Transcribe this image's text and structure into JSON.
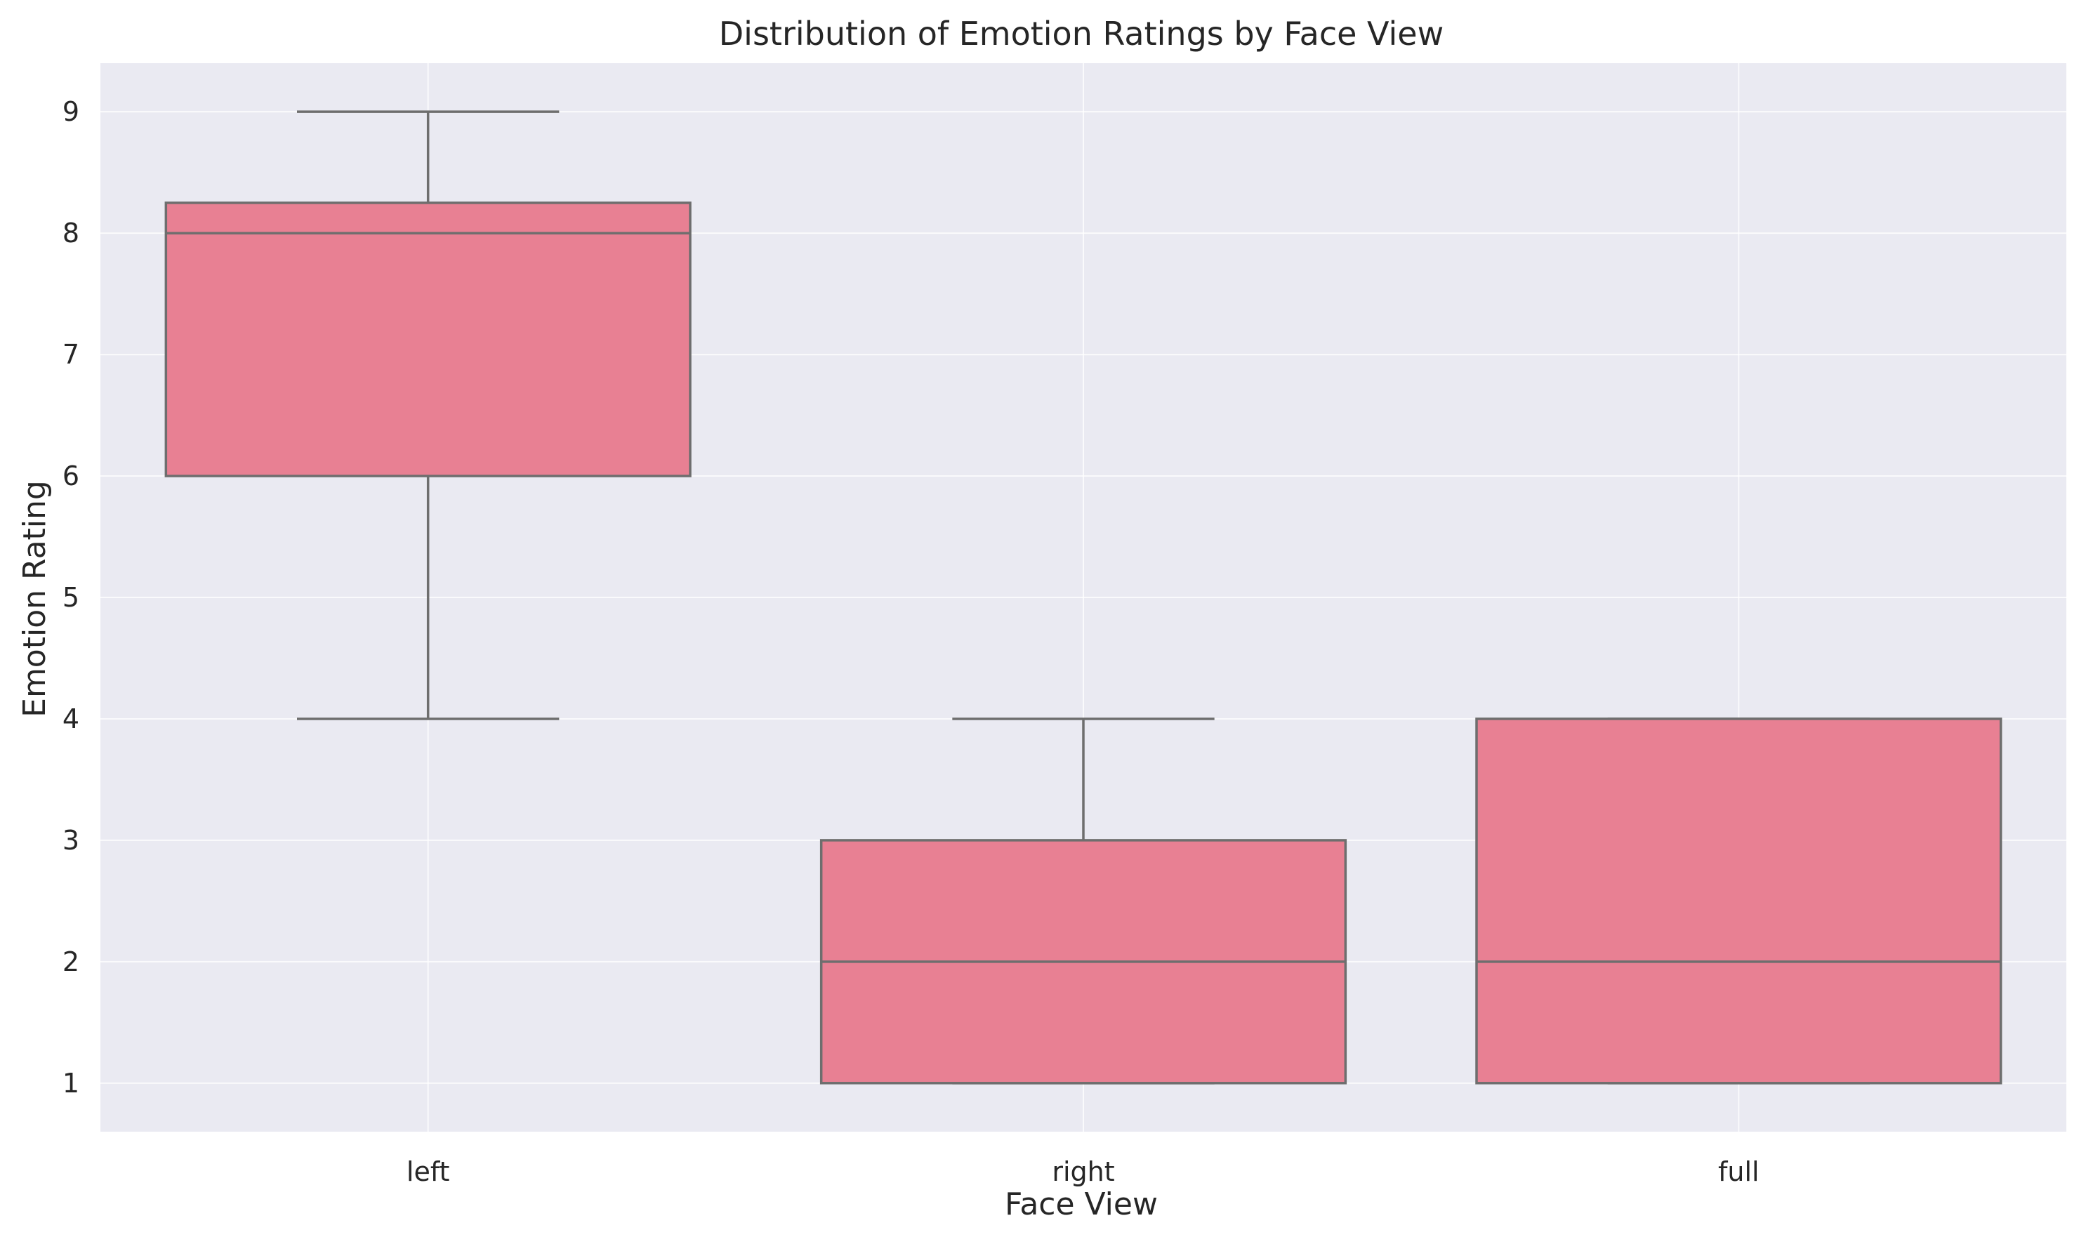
{
  "chart_data": {
    "type": "box",
    "title": "Distribution of Emotion Ratings by Face View",
    "xlabel": "Face View",
    "ylabel": "Emotion Rating",
    "categories": [
      "left",
      "right",
      "full"
    ],
    "boxes": [
      {
        "category": "left",
        "whisker_low": 4,
        "q1": 6,
        "median": 8,
        "q3": 8.25,
        "whisker_high": 9
      },
      {
        "category": "right",
        "whisker_low": 1,
        "q1": 1,
        "median": 2,
        "q3": 3,
        "whisker_high": 4
      },
      {
        "category": "full",
        "whisker_low": 1,
        "q1": 1,
        "median": 2,
        "q3": 4,
        "whisker_high": 4
      }
    ],
    "y_ticks": [
      "1",
      "2",
      "3",
      "4",
      "5",
      "6",
      "7",
      "8",
      "9"
    ],
    "ylim": [
      0.6,
      9.4
    ],
    "grid": true,
    "colors": {
      "box_fill": "#E88093",
      "line": "#6E6E6E",
      "plot_background": "#EAEAF2",
      "grid": "#FFFFFF"
    }
  }
}
